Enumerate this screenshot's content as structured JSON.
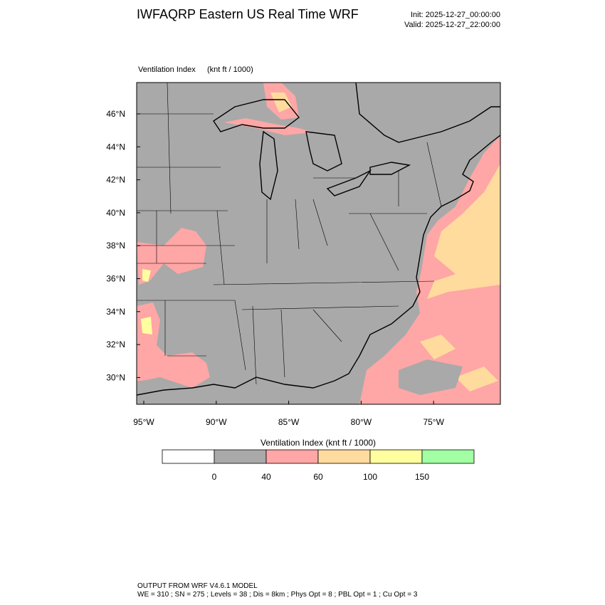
{
  "header": {
    "title": "IWFAQRP Eastern US Real Time WRF",
    "init": "Init: 2025-12-27_00:00:00",
    "valid": "Valid: 2025-12-27_22:00:00"
  },
  "map": {
    "field": "Ventilation Index",
    "units": "(knt ft / 1000)",
    "lat_labels": [
      "46°N",
      "44°N",
      "42°N",
      "40°N",
      "38°N",
      "36°N",
      "34°N",
      "32°N",
      "30°N"
    ],
    "lon_labels": [
      "95°W",
      "90°W",
      "85°W",
      "80°W",
      "75°W"
    ]
  },
  "legend": {
    "title": "Ventilation Index  (knt ft / 1000)",
    "colors": [
      "#ffffff",
      "#a9a9a9",
      "#ffa6a6",
      "#ffdb9e",
      "#ffff9f",
      "#a3ffa3"
    ],
    "labels": [
      "0",
      "40",
      "60",
      "100",
      "150"
    ]
  },
  "footer": {
    "model": "OUTPUT FROM WRF V4.6.1 MODEL",
    "settings": "WE = 310 ; SN = 275 ; Levels = 38 ; Dis = 8km ; Phys Opt = 8 ; PBL Opt = 1 ; Cu Opt = 3"
  }
}
